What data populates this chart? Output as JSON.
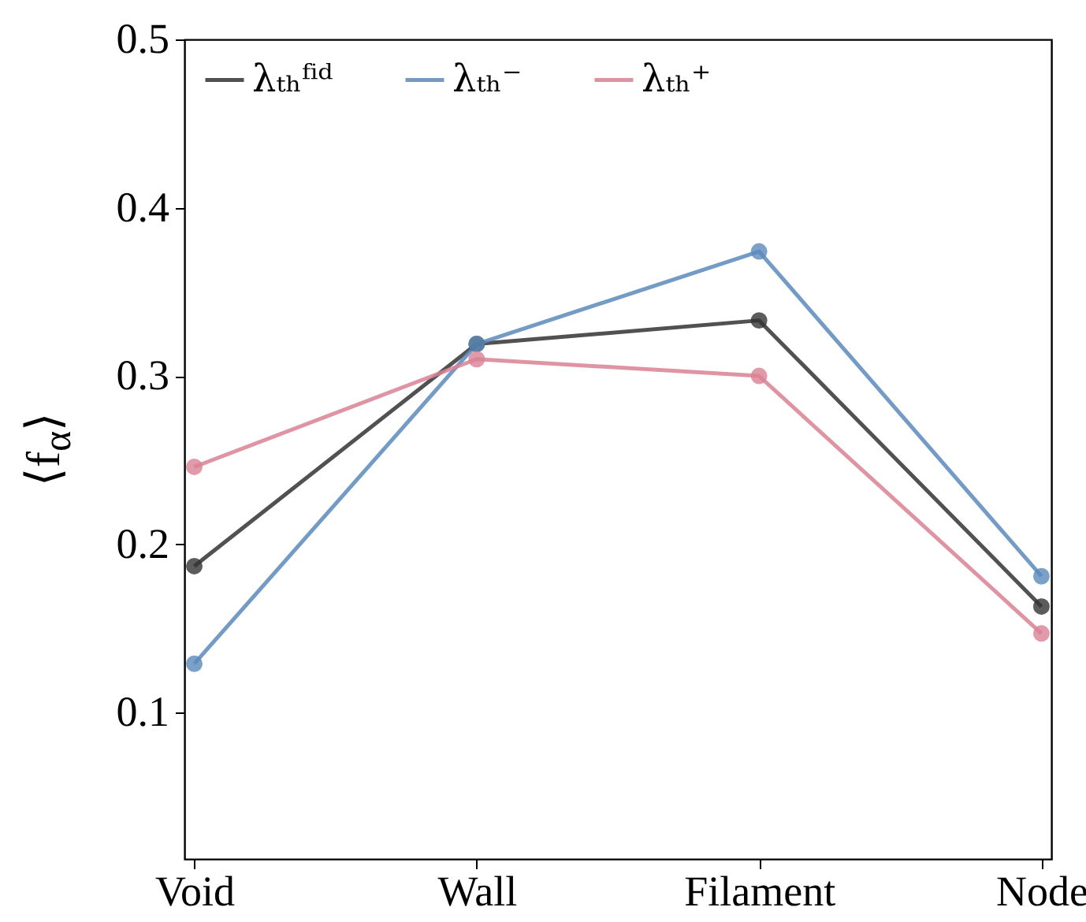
{
  "chart_data": {
    "type": "line",
    "ylabel": "⟨f$_{α}$⟩",
    "categories": [
      "Void",
      "Wall",
      "Filament",
      "Node"
    ],
    "series": [
      {
        "name": "λₜₕᶠⁱᵈ",
        "color": "#333333",
        "values": [
          0.187,
          0.319,
          0.333,
          0.163
        ]
      },
      {
        "name": "λₜₕ⁻",
        "color": "#5b8abb",
        "values": [
          0.129,
          0.319,
          0.374,
          0.181
        ]
      },
      {
        "name": "λₜₕ⁺",
        "color": "#d98194",
        "values": [
          0.246,
          0.31,
          0.3,
          0.147
        ]
      }
    ],
    "ylim": [
      0.013,
      0.5
    ],
    "yticks": [
      0.1,
      0.2,
      0.3,
      0.4,
      0.5
    ],
    "grid": false,
    "legend": "top left",
    "marker": "circle",
    "line_style": "solid"
  }
}
